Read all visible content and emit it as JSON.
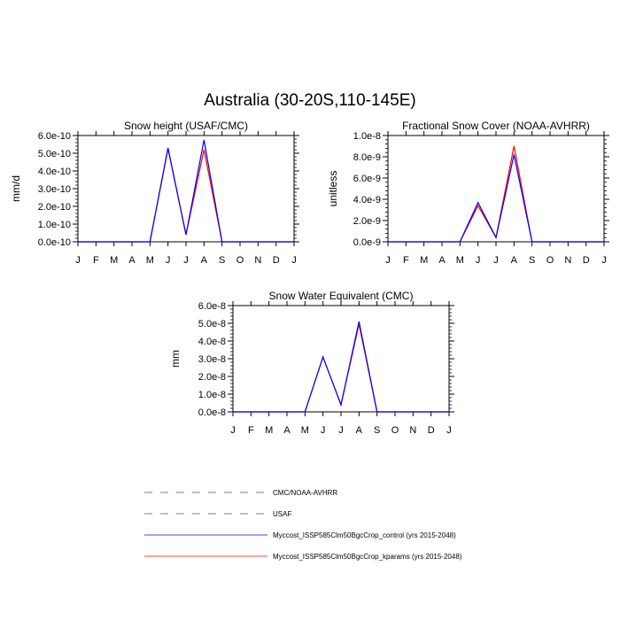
{
  "title": "Australia (30-20S,110-145E)",
  "months": [
    "J",
    "F",
    "M",
    "A",
    "M",
    "J",
    "J",
    "A",
    "S",
    "O",
    "N",
    "D",
    "J"
  ],
  "legend": [
    {
      "label": "CMC/NOAA-AVHRR",
      "color": "#000000",
      "dash": true
    },
    {
      "label": "USAF",
      "color": "#000000",
      "dash": true
    },
    {
      "label": "Myccost_ISSP585Clm50BgcCrop_control (yrs 2015-2048)",
      "color": "#0000ff",
      "dash": false
    },
    {
      "label": "Myccost_ISSP585Clm50BgcCrop_kparams (yrs 2015-2048)",
      "color": "#ff0000",
      "dash": false
    }
  ],
  "colors": {
    "control": "#0000ff",
    "kparams": "#ff0000"
  },
  "chart_data": [
    {
      "type": "line",
      "title": "Snow height (USAF/CMC)",
      "ylabel": "mm/d",
      "ylim": [
        0,
        6e-10
      ],
      "yticks": [
        0,
        1e-10,
        2e-10,
        3e-10,
        4e-10,
        5e-10,
        6e-10
      ],
      "yticklabels": [
        "0.0e-10",
        "1.0e-10",
        "2.0e-10",
        "3.0e-10",
        "4.0e-10",
        "5.0e-10",
        "6.0e-10"
      ],
      "x": [
        "J",
        "F",
        "M",
        "A",
        "M",
        "J",
        "J",
        "A",
        "S",
        "O",
        "N",
        "D",
        "J"
      ],
      "series": [
        {
          "name": "Myccost_ISSP585Clm50BgcCrop_kparams (yrs 2015-2048)",
          "color": "#ff0000",
          "values": [
            0,
            0,
            0,
            0,
            0,
            5.25e-10,
            4e-11,
            5.2e-10,
            0,
            0,
            0,
            0,
            0
          ]
        },
        {
          "name": "Myccost_ISSP585Clm50BgcCrop_control (yrs 2015-2048)",
          "color": "#0000ff",
          "values": [
            0,
            0,
            0,
            0,
            0,
            5.3e-10,
            4e-11,
            5.75e-10,
            0,
            0,
            0,
            0,
            0
          ]
        }
      ]
    },
    {
      "type": "line",
      "title": "Fractional Snow Cover (NOAA-AVHRR)",
      "ylabel": "unitless",
      "ylim": [
        0,
        1e-08
      ],
      "yticks": [
        0,
        2e-09,
        4e-09,
        6e-09,
        8e-09,
        1e-08
      ],
      "yticklabels": [
        "0.0e-9",
        "2.0e-9",
        "4.0e-9",
        "6.0e-9",
        "8.0e-9",
        "1.0e-8"
      ],
      "x": [
        "J",
        "F",
        "M",
        "A",
        "M",
        "J",
        "J",
        "A",
        "S",
        "O",
        "N",
        "D",
        "J"
      ],
      "series": [
        {
          "name": "Myccost_ISSP585Clm50BgcCrop_kparams (yrs 2015-2048)",
          "color": "#ff0000",
          "values": [
            0,
            0,
            0,
            0,
            0,
            3.4e-09,
            4e-10,
            9e-09,
            0,
            0,
            0,
            0,
            0
          ]
        },
        {
          "name": "Myccost_ISSP585Clm50BgcCrop_control (yrs 2015-2048)",
          "color": "#0000ff",
          "values": [
            0,
            0,
            0,
            0,
            0,
            3.7e-09,
            4e-10,
            8.2e-09,
            0,
            0,
            0,
            0,
            0
          ]
        }
      ]
    },
    {
      "type": "line",
      "title": "Snow Water Equivalent (CMC)",
      "ylabel": "mm",
      "ylim": [
        0,
        6e-08
      ],
      "yticks": [
        0,
        1e-08,
        2e-08,
        3e-08,
        4e-08,
        5e-08,
        6e-08
      ],
      "yticklabels": [
        "0.0e-8",
        "1.0e-8",
        "2.0e-8",
        "3.0e-8",
        "4.0e-8",
        "5.0e-8",
        "6.0e-8"
      ],
      "x": [
        "J",
        "F",
        "M",
        "A",
        "M",
        "J",
        "J",
        "A",
        "S",
        "O",
        "N",
        "D",
        "J"
      ],
      "series": [
        {
          "name": "Myccost_ISSP585Clm50BgcCrop_kparams (yrs 2015-2048)",
          "color": "#ff0000",
          "values": [
            0,
            0,
            0,
            0,
            0,
            3.1e-08,
            4e-09,
            4.95e-08,
            0,
            0,
            0,
            0,
            0
          ]
        },
        {
          "name": "Myccost_ISSP585Clm50BgcCrop_control (yrs 2015-2048)",
          "color": "#0000ff",
          "values": [
            0,
            0,
            0,
            0,
            0,
            3.1e-08,
            4e-09,
            5.1e-08,
            0,
            0,
            0,
            0,
            0
          ]
        }
      ]
    }
  ]
}
